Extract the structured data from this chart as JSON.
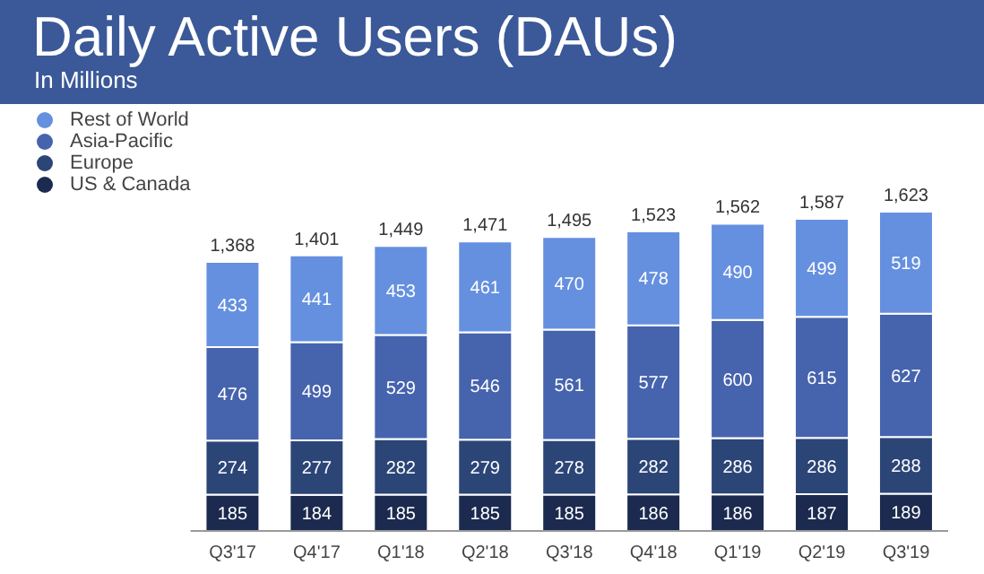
{
  "chart_data": {
    "type": "bar",
    "title": "Daily Active Users (DAUs)",
    "subtitle": "In Millions",
    "stacked": true,
    "data_labels": true,
    "legend": "top left",
    "grid": false,
    "tick_labels": "x",
    "categories": [
      "Q3'17",
      "Q4'17",
      "Q1'18",
      "Q2'18",
      "Q3'18",
      "Q4'18",
      "Q1'19",
      "Q2'19",
      "Q3'19"
    ],
    "series": [
      {
        "name": "US & Canada",
        "color": "#1b2a4e",
        "values": [
          185,
          184,
          185,
          185,
          185,
          186,
          186,
          187,
          189
        ]
      },
      {
        "name": "Europe",
        "color": "#2c4577",
        "values": [
          274,
          277,
          282,
          279,
          278,
          282,
          286,
          286,
          288
        ]
      },
      {
        "name": "Asia-Pacific",
        "color": "#4663ad",
        "values": [
          476,
          499,
          529,
          546,
          561,
          577,
          600,
          615,
          627
        ]
      },
      {
        "name": "Rest of World",
        "color": "#6590e0",
        "values": [
          433,
          441,
          453,
          461,
          470,
          478,
          490,
          499,
          519
        ]
      }
    ],
    "totals": [
      "1,368",
      "1,401",
      "1,449",
      "1,471",
      "1,495",
      "1,523",
      "1,562",
      "1,587",
      "1,623"
    ]
  }
}
